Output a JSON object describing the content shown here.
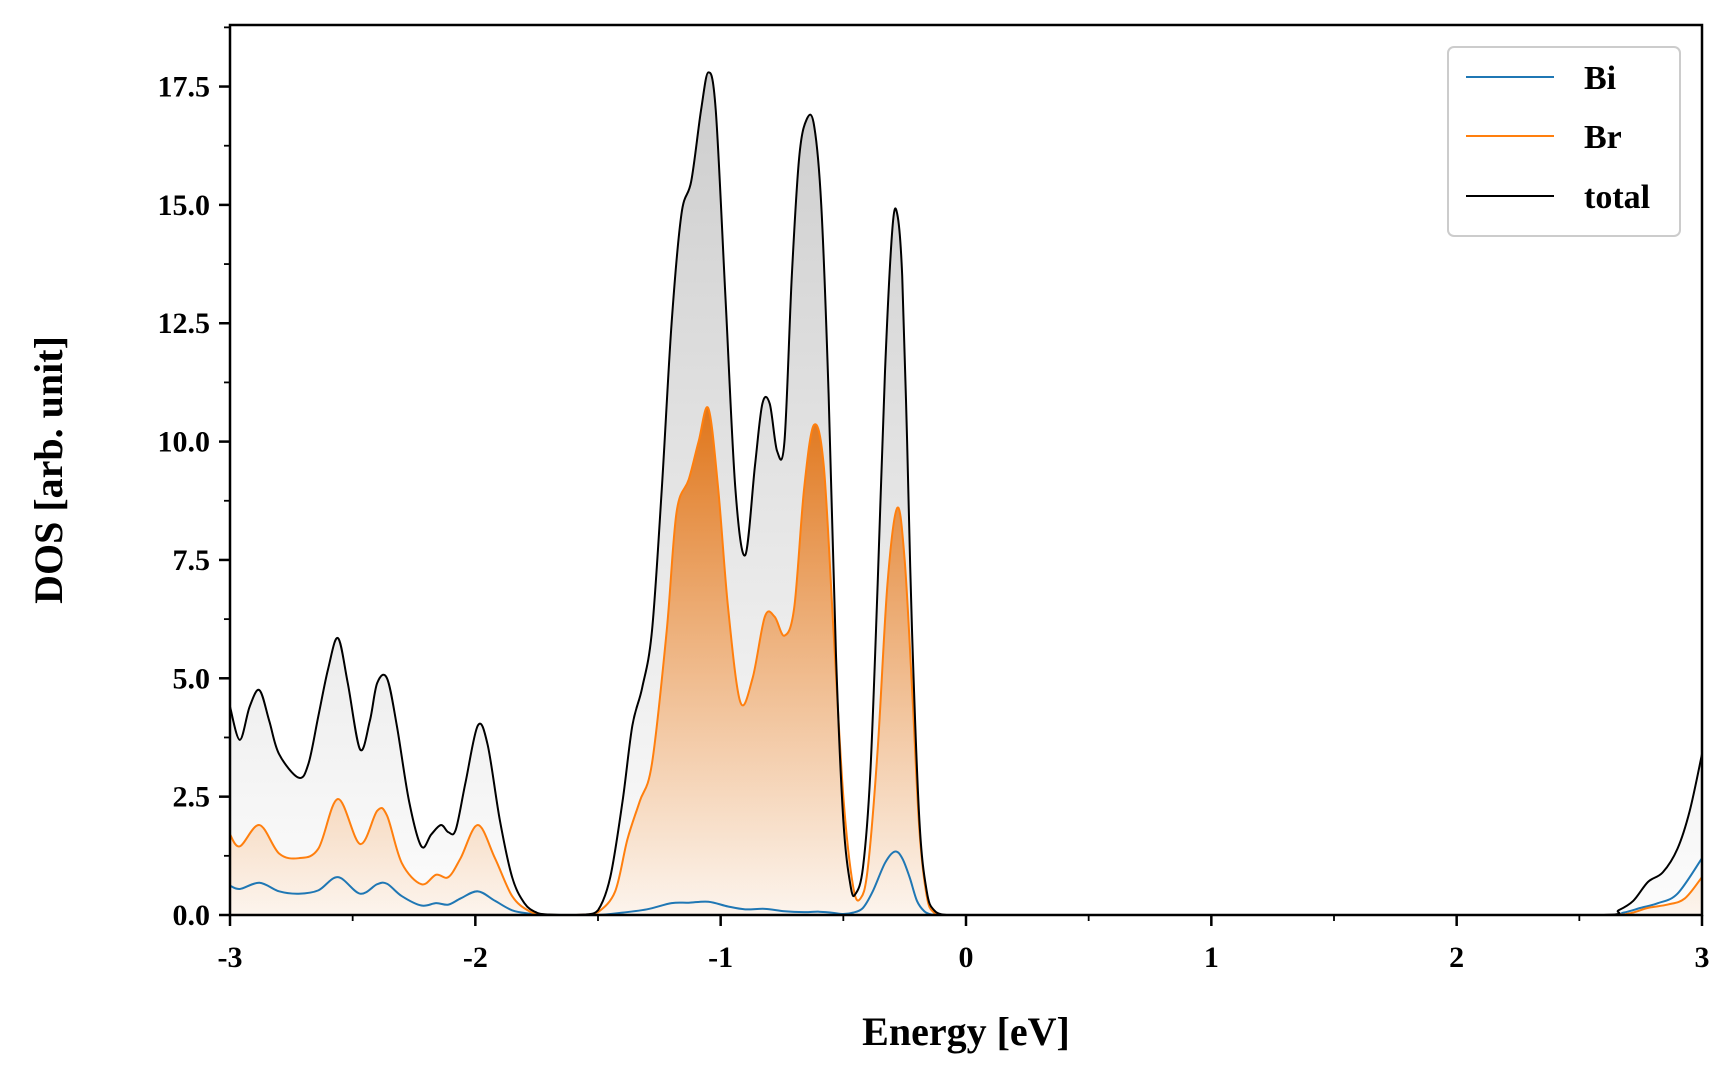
{
  "chart_data": {
    "type": "line",
    "xlabel": "Energy [eV]",
    "ylabel": "DOS [arb. unit]",
    "xlim": [
      -3,
      3
    ],
    "ylim": [
      0,
      18.8
    ],
    "x_ticks": [
      "-3",
      "-2",
      "-1",
      "0",
      "1",
      "2",
      "3"
    ],
    "y_ticks": [
      "0.0",
      "2.5",
      "5.0",
      "7.5",
      "10.0",
      "12.5",
      "15.0",
      "17.5"
    ],
    "grid": false,
    "legend_position": "top-right",
    "series": [
      {
        "name": "Bi",
        "color": "#1f77b4",
        "fill": false,
        "x": [
          -3.0,
          -2.96,
          -2.88,
          -2.8,
          -2.72,
          -2.64,
          -2.56,
          -2.47,
          -2.4,
          -2.36,
          -2.3,
          -2.22,
          -2.16,
          -2.11,
          -2.06,
          -1.99,
          -1.92,
          -1.85,
          -1.78,
          -1.72,
          -1.65,
          -1.5,
          -1.4,
          -1.3,
          -1.2,
          -1.13,
          -1.05,
          -0.97,
          -0.9,
          -0.82,
          -0.74,
          -0.66,
          -0.6,
          -0.55,
          -0.5,
          -0.46,
          -0.42,
          -0.38,
          -0.33,
          -0.29,
          -0.26,
          -0.23,
          -0.2,
          -0.17,
          -0.14,
          -0.1,
          0.0,
          1.0,
          2.0,
          2.6,
          2.68,
          2.75,
          2.82,
          2.9,
          3.0
        ],
        "y": [
          0.62,
          0.55,
          0.68,
          0.5,
          0.45,
          0.52,
          0.8,
          0.45,
          0.65,
          0.66,
          0.4,
          0.2,
          0.25,
          0.22,
          0.35,
          0.5,
          0.3,
          0.1,
          0.03,
          0.01,
          0.0,
          0.0,
          0.05,
          0.12,
          0.25,
          0.26,
          0.28,
          0.18,
          0.12,
          0.13,
          0.08,
          0.06,
          0.07,
          0.05,
          0.02,
          0.05,
          0.15,
          0.5,
          1.1,
          1.34,
          1.2,
          0.8,
          0.3,
          0.08,
          0.01,
          0.0,
          0.0,
          0.0,
          0.0,
          0.0,
          0.05,
          0.15,
          0.25,
          0.45,
          1.2
        ]
      },
      {
        "name": "Br",
        "color": "#ff7f0e",
        "fill": true,
        "x": [
          -3.0,
          -2.96,
          -2.88,
          -2.8,
          -2.72,
          -2.64,
          -2.56,
          -2.47,
          -2.4,
          -2.36,
          -2.3,
          -2.22,
          -2.16,
          -2.11,
          -2.06,
          -1.99,
          -1.92,
          -1.85,
          -1.78,
          -1.72,
          -1.65,
          -1.6,
          -1.55,
          -1.5,
          -1.43,
          -1.38,
          -1.33,
          -1.28,
          -1.22,
          -1.18,
          -1.13,
          -1.09,
          -1.05,
          -1.01,
          -0.97,
          -0.92,
          -0.87,
          -0.82,
          -0.78,
          -0.74,
          -0.7,
          -0.66,
          -0.62,
          -0.58,
          -0.54,
          -0.5,
          -0.46,
          -0.43,
          -0.4,
          -0.36,
          -0.32,
          -0.28,
          -0.25,
          -0.22,
          -0.19,
          -0.16,
          -0.13,
          -0.08,
          0.0,
          1.0,
          2.0,
          2.6,
          2.7,
          2.78,
          2.86,
          2.93,
          3.0
        ],
        "y": [
          1.7,
          1.45,
          1.9,
          1.3,
          1.2,
          1.4,
          2.45,
          1.5,
          2.2,
          2.1,
          1.1,
          0.65,
          0.85,
          0.8,
          1.2,
          1.9,
          1.2,
          0.4,
          0.08,
          0.01,
          0.0,
          0.0,
          0.01,
          0.06,
          0.5,
          1.6,
          2.4,
          3.2,
          6.0,
          8.5,
          9.2,
          10.0,
          10.7,
          9.0,
          6.5,
          4.5,
          5.0,
          6.3,
          6.3,
          5.9,
          6.5,
          9.0,
          10.35,
          9.5,
          6.0,
          2.5,
          0.6,
          0.35,
          1.0,
          3.5,
          7.0,
          8.6,
          7.5,
          4.8,
          1.8,
          0.4,
          0.05,
          0.0,
          0.0,
          0.0,
          0.0,
          0.0,
          0.03,
          0.15,
          0.22,
          0.35,
          0.8
        ]
      },
      {
        "name": "total",
        "color": "#000000",
        "fill": true,
        "x": [
          -3.0,
          -2.96,
          -2.92,
          -2.88,
          -2.84,
          -2.8,
          -2.72,
          -2.68,
          -2.64,
          -2.6,
          -2.56,
          -2.52,
          -2.47,
          -2.43,
          -2.4,
          -2.36,
          -2.32,
          -2.27,
          -2.22,
          -2.18,
          -2.14,
          -2.11,
          -2.08,
          -2.04,
          -1.99,
          -1.95,
          -1.9,
          -1.85,
          -1.8,
          -1.75,
          -1.7,
          -1.65,
          -1.6,
          -1.55,
          -1.5,
          -1.45,
          -1.4,
          -1.36,
          -1.32,
          -1.28,
          -1.24,
          -1.2,
          -1.16,
          -1.12,
          -1.08,
          -1.05,
          -1.02,
          -0.98,
          -0.94,
          -0.9,
          -0.86,
          -0.83,
          -0.8,
          -0.77,
          -0.74,
          -0.71,
          -0.68,
          -0.65,
          -0.62,
          -0.59,
          -0.56,
          -0.53,
          -0.5,
          -0.47,
          -0.45,
          -0.42,
          -0.39,
          -0.36,
          -0.33,
          -0.3,
          -0.28,
          -0.26,
          -0.24,
          -0.22,
          -0.19,
          -0.16,
          -0.13,
          -0.08,
          0.0,
          1.0,
          2.0,
          2.6,
          2.66,
          2.72,
          2.78,
          2.84,
          2.9,
          2.95,
          3.0
        ],
        "y": [
          4.4,
          3.7,
          4.4,
          4.75,
          4.1,
          3.4,
          2.9,
          3.2,
          4.2,
          5.2,
          5.85,
          4.9,
          3.5,
          4.1,
          4.9,
          5.0,
          4.0,
          2.4,
          1.45,
          1.7,
          1.9,
          1.75,
          1.8,
          2.8,
          4.0,
          3.6,
          2.0,
          0.8,
          0.25,
          0.05,
          0.01,
          0.0,
          0.0,
          0.01,
          0.1,
          0.8,
          2.4,
          4.0,
          4.8,
          6.0,
          9.0,
          12.5,
          14.8,
          15.5,
          17.0,
          17.8,
          17.0,
          13.0,
          9.0,
          7.6,
          9.5,
          10.8,
          10.8,
          9.8,
          10.0,
          13.5,
          16.0,
          16.8,
          16.7,
          15.0,
          11.0,
          5.5,
          2.0,
          0.6,
          0.45,
          1.0,
          3.0,
          7.0,
          11.5,
          14.5,
          14.8,
          13.5,
          10.0,
          6.0,
          2.0,
          0.5,
          0.1,
          0.0,
          0.0,
          0.0,
          0.0,
          0.0,
          0.1,
          0.3,
          0.7,
          0.9,
          1.4,
          2.2,
          3.4
        ]
      }
    ]
  }
}
